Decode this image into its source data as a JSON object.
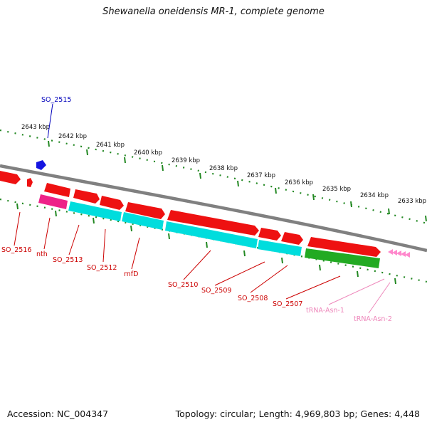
{
  "title": "Shewanella oneidensis MR-1, complete genome",
  "footer": {
    "accession": "Accession: NC_004347",
    "topology": "Topology: circular; Length: 4,969,803 bp; Genes: 4,448"
  },
  "colors": {
    "backbone": "#808080",
    "cds": "#ee1111",
    "cds_alt_strand": "#00dddd",
    "rrna_like": "#22aa22",
    "trna": "#ff88cc",
    "misc_pink": "#ee2288",
    "tick": "#228822",
    "label_red": "#cc0000",
    "label_blue": "#0000bb",
    "label_pink": "#ee88bb"
  },
  "ticks": [
    {
      "label": "2643 kbp"
    },
    {
      "label": "2642 kbp"
    },
    {
      "label": "2641 kbp"
    },
    {
      "label": "2640 kbp"
    },
    {
      "label": "2639 kbp"
    },
    {
      "label": "2638 kbp"
    },
    {
      "label": "2637 kbp"
    },
    {
      "label": "2636 kbp"
    },
    {
      "label": "2635 kbp"
    },
    {
      "label": "2634 kbp"
    },
    {
      "label": "2633 kbp"
    }
  ],
  "genes": [
    {
      "label": "SO_2515",
      "type": "cds",
      "color": "label_blue"
    },
    {
      "label": "SO_2516",
      "type": "cds",
      "color": "label_red"
    },
    {
      "label": "nth",
      "type": "cds",
      "color": "label_red"
    },
    {
      "label": "SO_2513",
      "type": "cds",
      "color": "label_red"
    },
    {
      "label": "SO_2512",
      "type": "cds",
      "color": "label_red"
    },
    {
      "label": "rnfD",
      "type": "cds",
      "color": "label_red"
    },
    {
      "label": "SO_2510",
      "type": "cds",
      "color": "label_red"
    },
    {
      "label": "SO_2509",
      "type": "cds",
      "color": "label_red"
    },
    {
      "label": "SO_2508",
      "type": "cds",
      "color": "label_red"
    },
    {
      "label": "SO_2507",
      "type": "cds",
      "color": "label_red"
    },
    {
      "label": "tRNA-Asn-1",
      "type": "trna",
      "color": "label_pink"
    },
    {
      "label": "tRNA-Asn-2",
      "type": "trna",
      "color": "label_pink"
    }
  ]
}
